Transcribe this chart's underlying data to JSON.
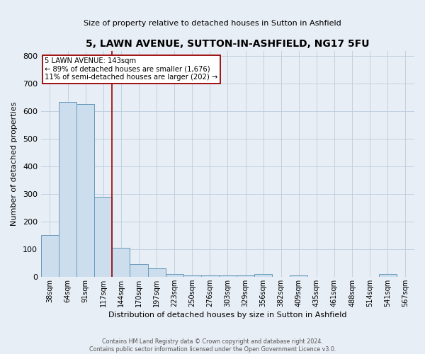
{
  "title": "5, LAWN AVENUE, SUTTON-IN-ASHFIELD, NG17 5FU",
  "subtitle": "Size of property relative to detached houses in Sutton in Ashfield",
  "xlabel": "Distribution of detached houses by size in Sutton in Ashfield",
  "ylabel": "Number of detached properties",
  "footnote1": "Contains HM Land Registry data © Crown copyright and database right 2024.",
  "footnote2": "Contains public sector information licensed under the Open Government Licence v3.0.",
  "bar_labels": [
    "38sqm",
    "64sqm",
    "91sqm",
    "117sqm",
    "144sqm",
    "170sqm",
    "197sqm",
    "223sqm",
    "250sqm",
    "276sqm",
    "303sqm",
    "329sqm",
    "356sqm",
    "382sqm",
    "409sqm",
    "435sqm",
    "461sqm",
    "488sqm",
    "514sqm",
    "541sqm",
    "567sqm"
  ],
  "bar_values": [
    150,
    635,
    625,
    290,
    104,
    46,
    30,
    11,
    6,
    6,
    6,
    6,
    11,
    0,
    6,
    0,
    0,
    0,
    0,
    11,
    0
  ],
  "bar_color": "#ccdded",
  "bar_edge_color": "#6699bb",
  "grid_color": "#bbccdd",
  "bg_color": "#e8eef5",
  "plot_bg_color": "#e8eef5",
  "vline_color": "#990000",
  "annotation_text": "5 LAWN AVENUE: 143sqm\n← 89% of detached houses are smaller (1,676)\n11% of semi-detached houses are larger (202) →",
  "annotation_box_color": "white",
  "annotation_border_color": "#990000",
  "ylim": [
    0,
    820
  ],
  "yticks": [
    0,
    100,
    200,
    300,
    400,
    500,
    600,
    700,
    800
  ]
}
